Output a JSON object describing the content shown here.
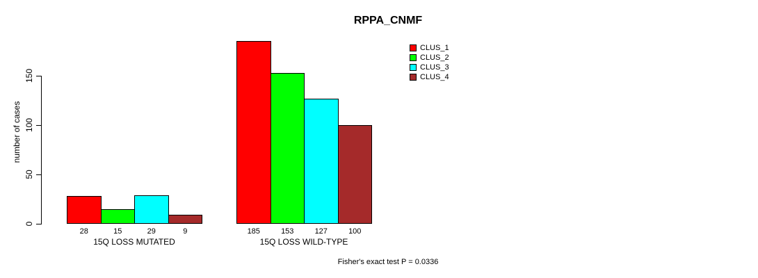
{
  "chart_data": {
    "type": "bar",
    "title": "RPPA_CNMF",
    "xlabel": "",
    "ylabel": "number of cases",
    "yticks": [
      0,
      50,
      100,
      150
    ],
    "ylim": [
      0,
      185
    ],
    "grid": false,
    "legend_position": "top-right-outside",
    "categories": [
      "15Q LOSS MUTATED",
      "15Q LOSS WILD-TYPE"
    ],
    "series": [
      {
        "name": "CLUS_1",
        "color": "#ff0000",
        "values": [
          28,
          185
        ]
      },
      {
        "name": "CLUS_2",
        "color": "#00ff00",
        "values": [
          15,
          153
        ]
      },
      {
        "name": "CLUS_3",
        "color": "#00ffff",
        "values": [
          29,
          127
        ]
      },
      {
        "name": "CLUS_4",
        "color": "#a52a2a",
        "values": [
          9,
          100
        ]
      }
    ],
    "bar_value_labels": [
      [
        28,
        15,
        29,
        9
      ],
      [
        185,
        153,
        127,
        100
      ]
    ],
    "annotation": "Fisher's exact test P = 0.0336"
  },
  "colors": {
    "background": "#ffffff",
    "axis": "#000000",
    "text": "#000000"
  }
}
